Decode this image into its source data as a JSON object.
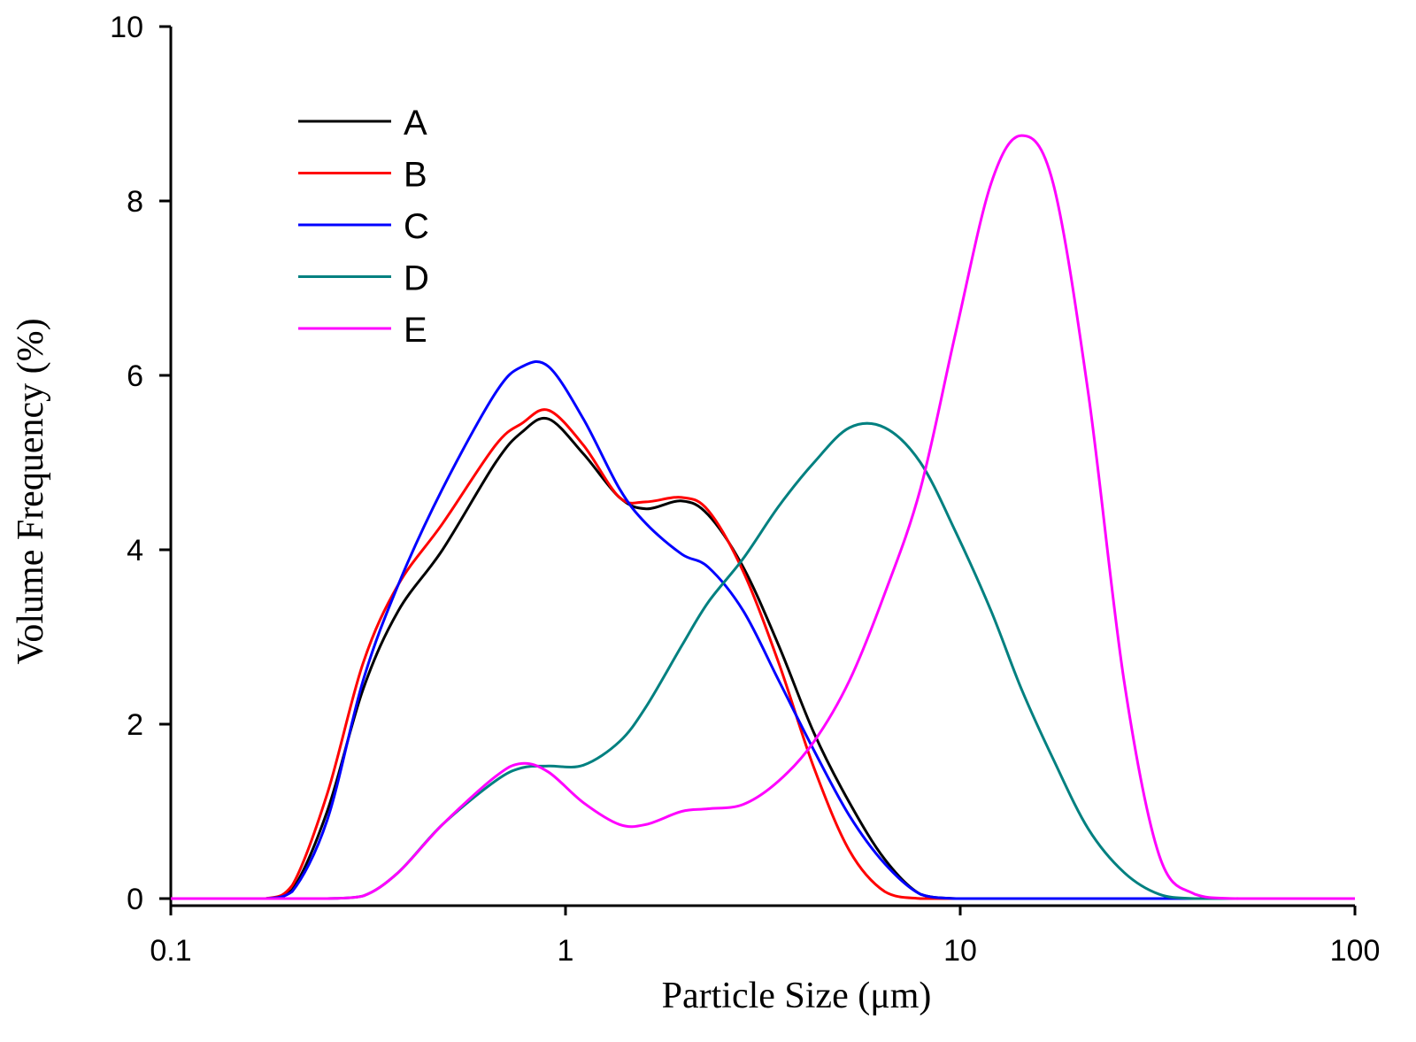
{
  "chart_data": {
    "type": "line",
    "title": "",
    "xlabel": "Particle Size (μm)",
    "ylabel": "Volume Frequency (%)",
    "xscale": "log",
    "xlim": [
      0.1,
      100
    ],
    "ylim": [
      0,
      10
    ],
    "xticks": [
      0.1,
      1,
      10,
      100
    ],
    "xtick_labels": [
      "0.1",
      "1",
      "10",
      "100"
    ],
    "yticks": [
      0,
      2,
      4,
      6,
      8,
      10
    ],
    "ytick_labels": [
      "0",
      "2",
      "4",
      "6",
      "8",
      "10"
    ],
    "grid": false,
    "legend_position": "top-left",
    "x": [
      0.1,
      0.134,
      0.174,
      0.203,
      0.249,
      0.307,
      0.377,
      0.488,
      0.665,
      0.776,
      0.906,
      1.11,
      1.37,
      1.6,
      1.97,
      2.3,
      2.82,
      3.47,
      4.26,
      5.24,
      6.44,
      7.93,
      9.75,
      11.97,
      14.3,
      17.2,
      21.1,
      26.0,
      31.9,
      39.3,
      50.8,
      100
    ],
    "series": [
      {
        "name": "A",
        "color": "#000000",
        "values": [
          0,
          0,
          0,
          0.1,
          1.0,
          2.4,
          3.3,
          4.0,
          5.0,
          5.35,
          5.5,
          5.1,
          4.6,
          4.47,
          4.56,
          4.4,
          3.8,
          2.9,
          1.9,
          1.1,
          0.45,
          0.05,
          0,
          0,
          0,
          0,
          0,
          0,
          0,
          0,
          0,
          0
        ]
      },
      {
        "name": "B",
        "color": "#ff0000",
        "values": [
          0,
          0,
          0,
          0.15,
          1.2,
          2.7,
          3.6,
          4.3,
          5.2,
          5.45,
          5.6,
          5.2,
          4.6,
          4.55,
          4.6,
          4.45,
          3.75,
          2.7,
          1.5,
          0.55,
          0.08,
          0,
          0,
          0,
          0,
          0,
          0,
          0,
          0,
          0,
          0,
          0
        ]
      },
      {
        "name": "C",
        "color": "#0000ff",
        "values": [
          0,
          0,
          0,
          0.08,
          0.9,
          2.5,
          3.6,
          4.7,
          5.8,
          6.1,
          6.1,
          5.5,
          4.7,
          4.3,
          3.95,
          3.8,
          3.3,
          2.5,
          1.7,
          0.95,
          0.4,
          0.05,
          0,
          0,
          0,
          0,
          0,
          0,
          0,
          0,
          0,
          0
        ]
      },
      {
        "name": "D",
        "color": "#008080",
        "values": [
          0,
          0,
          0,
          0,
          0,
          0.03,
          0.3,
          0.85,
          1.35,
          1.5,
          1.52,
          1.53,
          1.8,
          2.2,
          2.9,
          3.4,
          3.9,
          4.5,
          5.0,
          5.4,
          5.4,
          5.0,
          4.2,
          3.3,
          2.4,
          1.6,
          0.8,
          0.3,
          0.05,
          0,
          0,
          0
        ]
      },
      {
        "name": "E",
        "color": "#ff00ff",
        "values": [
          0,
          0,
          0,
          0,
          0,
          0.03,
          0.3,
          0.85,
          1.4,
          1.55,
          1.45,
          1.1,
          0.85,
          0.85,
          1.0,
          1.03,
          1.08,
          1.35,
          1.8,
          2.5,
          3.5,
          4.7,
          6.5,
          8.2,
          8.75,
          8.2,
          5.8,
          2.5,
          0.5,
          0.05,
          0,
          0
        ]
      }
    ]
  }
}
